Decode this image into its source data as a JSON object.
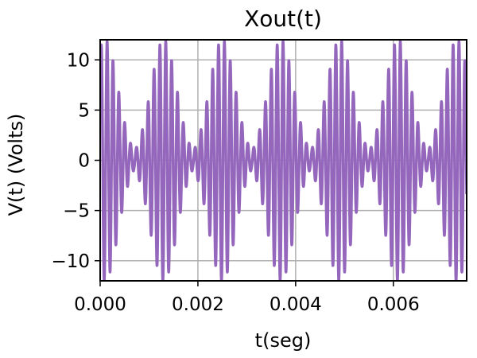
{
  "chart_data": {
    "type": "line",
    "title": "Xout(t)",
    "xlabel": "t(seg)",
    "ylabel": "V(t) (Volts)",
    "xlim": [
      0,
      0.0075
    ],
    "ylim": [
      -12,
      12
    ],
    "xticks": [
      0,
      0.002,
      0.004,
      0.006
    ],
    "xtick_labels": [
      "0.000",
      "0.002",
      "0.004",
      "0.006"
    ],
    "yticks": [
      -10,
      -5,
      0,
      5,
      10
    ],
    "ytick_labels": [
      "−10",
      "−5",
      "0",
      "5",
      "10"
    ],
    "grid": true,
    "series": [
      {
        "color": "#9467bd",
        "period": 0.0012,
        "burst_center": 0.0001,
        "carrier_frequency": 8333,
        "peak_amplitude": 12
      }
    ]
  }
}
